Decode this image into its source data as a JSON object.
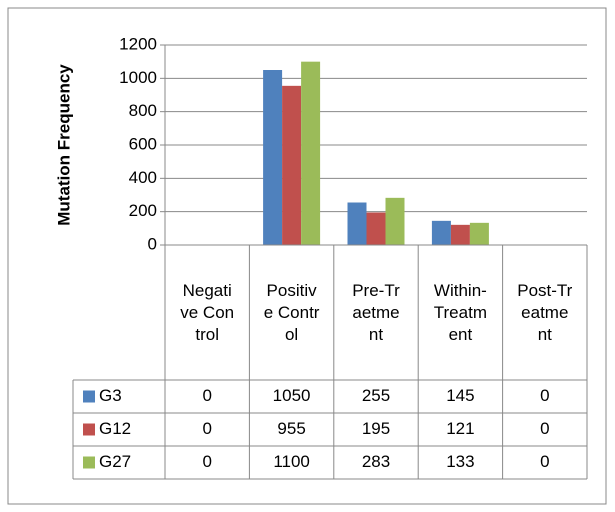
{
  "chart_data": {
    "type": "bar",
    "ylabel": "Mutation Frequency",
    "categories": [
      "Negative Control",
      "Positive Control",
      "Pre-Traetment",
      "Within-Treatment",
      "Post-Treatment"
    ],
    "series": [
      {
        "name": "G3",
        "color": "#4f81bd",
        "values": [
          0,
          1050,
          255,
          145,
          0
        ]
      },
      {
        "name": "G12",
        "color": "#c0504d",
        "values": [
          0,
          955,
          195,
          121,
          0
        ]
      },
      {
        "name": "G27",
        "color": "#9bbb59",
        "values": [
          0,
          1100,
          283,
          133,
          0
        ]
      }
    ],
    "ylim": [
      0,
      1200
    ],
    "yticks": [
      0,
      200,
      400,
      600,
      800,
      1000,
      1200
    ],
    "grid": true,
    "data_table": true
  }
}
